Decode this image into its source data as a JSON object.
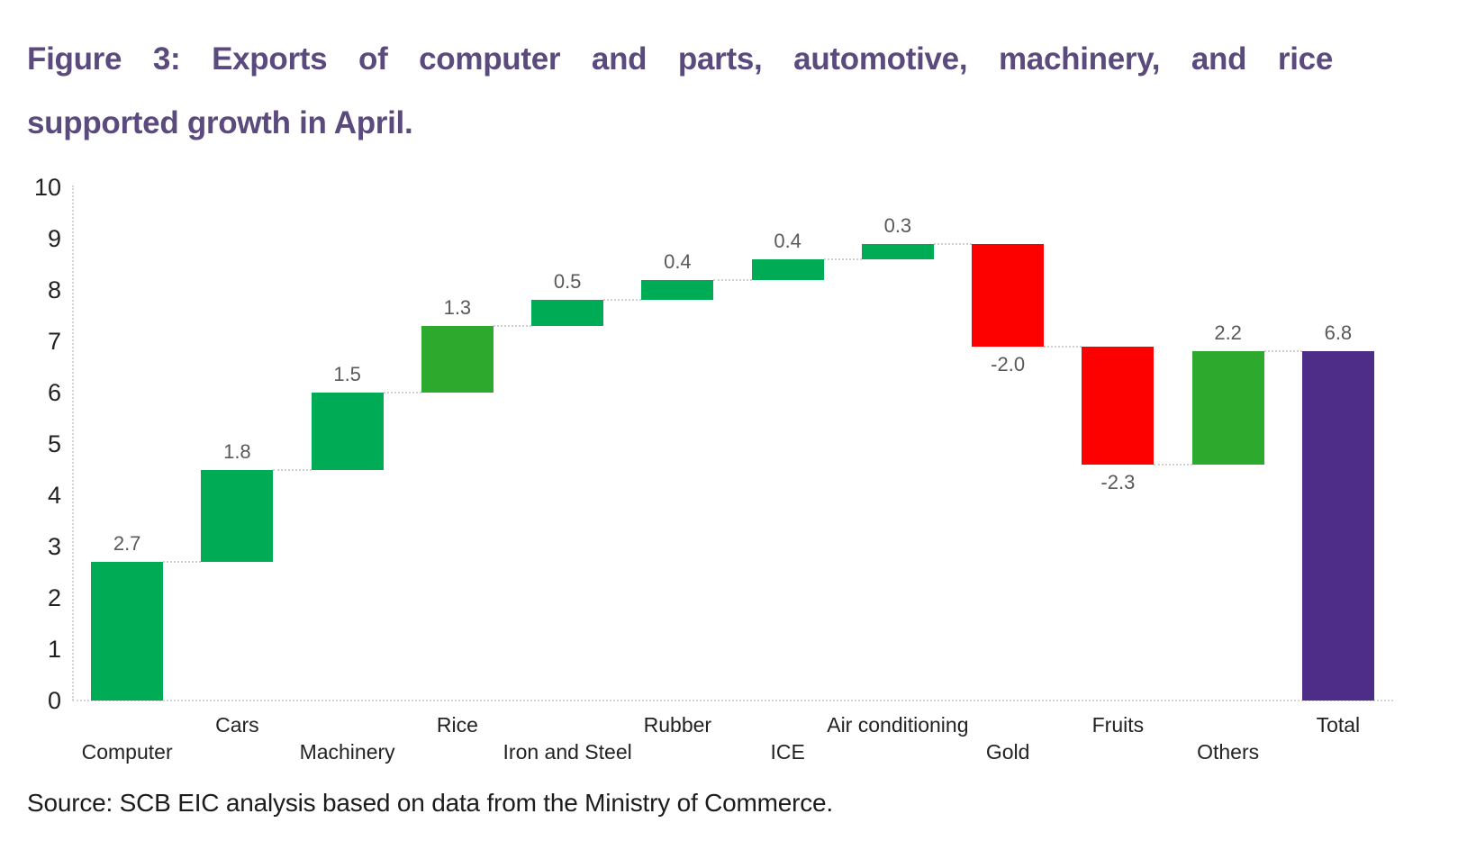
{
  "figure": {
    "title_line1": "Figure 3: Exports of computer and parts, automotive, machinery, and rice",
    "title_line2": "supported growth in April.",
    "title_color": "#5a4a7d",
    "source": "Source: SCB EIC analysis based on data from the Ministry of Commerce."
  },
  "chart_data": {
    "type": "bar",
    "subtype": "waterfall",
    "categories": [
      "Computer",
      "Cars",
      "Machinery",
      "Rice",
      "Iron and Steel",
      "Rubber",
      "ICE",
      "Air conditioning",
      "Gold",
      "Fruits",
      "Others",
      "Total"
    ],
    "values": [
      2.7,
      1.8,
      1.5,
      1.3,
      0.5,
      0.4,
      0.4,
      0.3,
      -2.0,
      -2.3,
      2.2,
      6.8
    ],
    "value_labels": [
      "2.7",
      "1.8",
      "1.5",
      "1.3",
      "0.5",
      "0.4",
      "0.4",
      "0.3",
      "-2.0",
      "-2.3",
      "2.2",
      "6.8"
    ],
    "is_total": [
      false,
      false,
      false,
      false,
      false,
      false,
      false,
      false,
      false,
      false,
      false,
      true
    ],
    "cumulative_start": [
      0,
      2.7,
      4.5,
      6.0,
      7.3,
      7.8,
      8.2,
      8.6,
      8.9,
      6.9,
      4.6,
      0
    ],
    "cumulative_end": [
      2.7,
      4.5,
      6.0,
      7.3,
      7.8,
      8.2,
      8.6,
      8.9,
      6.9,
      4.6,
      6.8,
      6.8
    ],
    "bar_color_keys": [
      "green",
      "green",
      "green",
      "green_bright",
      "green",
      "green",
      "green",
      "green",
      "red",
      "red",
      "green_bright",
      "purple"
    ],
    "palette": {
      "green": "#00ab55",
      "green_bright": "#2daa2d",
      "red": "#fd0000",
      "purple": "#4d2d87"
    },
    "title": "Figure 3: Exports of computer and parts, automotive, machinery, and rice supported growth in April.",
    "xlabel": "",
    "ylabel": "",
    "ylim": [
      0,
      10
    ],
    "yticks": [
      "0",
      "1",
      "2",
      "3",
      "4",
      "5",
      "6",
      "7",
      "8",
      "9",
      "10"
    ],
    "grid": false,
    "legend": false,
    "connector_style": "dotted",
    "value_label_color": "#595959",
    "axis_text_color": "#222222"
  }
}
